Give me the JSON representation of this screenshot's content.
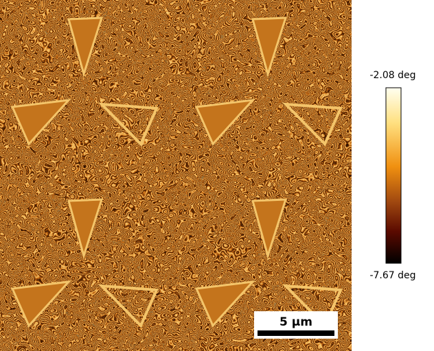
{
  "colorbar": {
    "max_label": "-2.08 deg",
    "min_label": "-7.67 deg"
  },
  "scale_bar": {
    "label": "5 µm"
  }
}
